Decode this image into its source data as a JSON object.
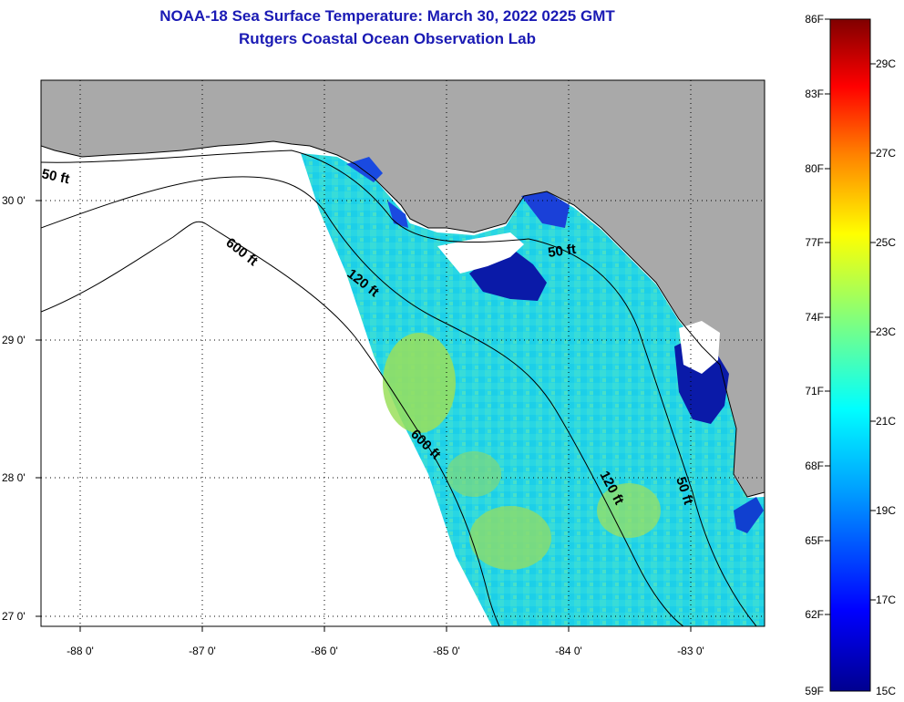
{
  "title": {
    "line1": "NOAA-18 Sea Surface Temperature:  March 30, 2022 0225 GMT",
    "line2": "Rutgers Coastal Ocean Observation Lab"
  },
  "map": {
    "lon_labels": [
      "-88 0'",
      "-87 0'",
      "-86 0'",
      "-85 0'",
      "-84 0'",
      "-83 0'"
    ],
    "lat_labels": [
      "30 0'",
      "29 0'",
      "28 0'",
      "27 0'"
    ],
    "contour_labels": [
      "50 ft",
      "600 ft",
      "120 ft",
      "50 ft",
      "600 ft",
      "120 ft",
      "50 ft"
    ],
    "colors": {
      "land": "#a9a9a9",
      "no_data": "#ffffff",
      "water_main": "#22d4e6",
      "warm_patch": "#9adf5a",
      "cold_patch": "#0a1aa8"
    }
  },
  "colorbar": {
    "fahrenheit_labels": [
      "86F",
      "83F",
      "80F",
      "77F",
      "74F",
      "71F",
      "68F",
      "65F",
      "62F",
      "59F"
    ],
    "celsius_labels": [
      "29C",
      "27C",
      "25C",
      "23C",
      "21C",
      "19C",
      "17C",
      "15C"
    ],
    "colormap": [
      "#00008f",
      "#0000ff",
      "#00a0ff",
      "#00ffff",
      "#7fff7f",
      "#ffff00",
      "#ff8000",
      "#ff0000",
      "#800000"
    ]
  }
}
